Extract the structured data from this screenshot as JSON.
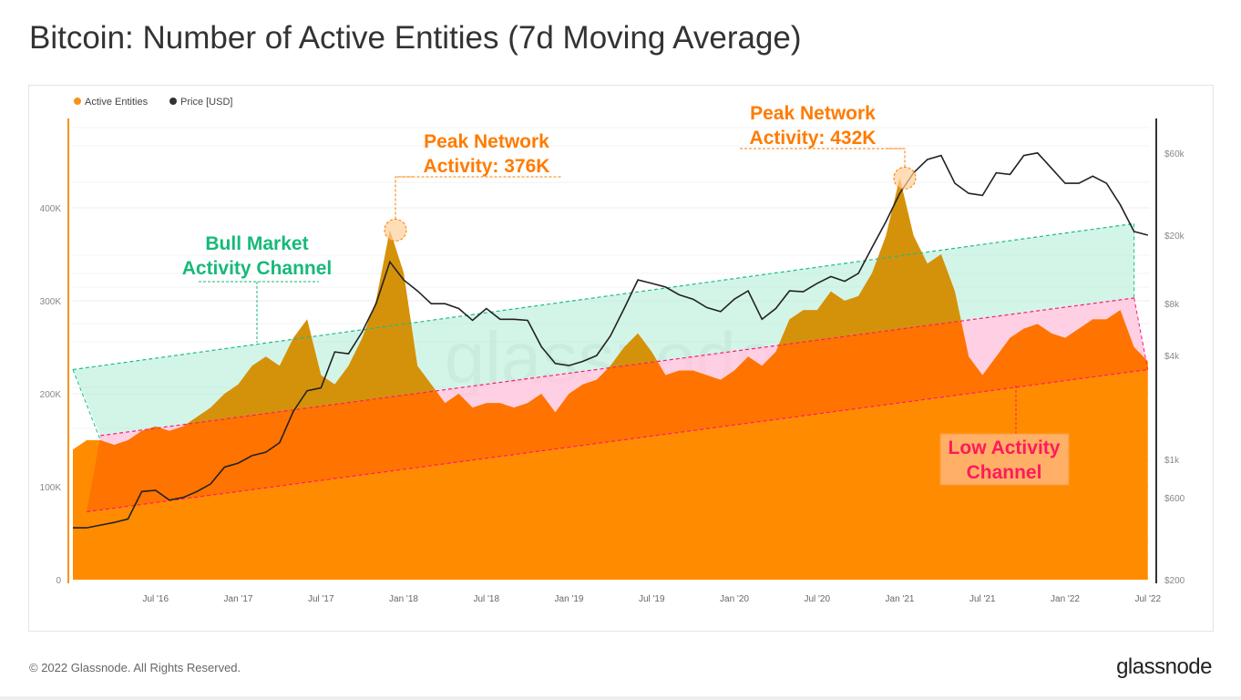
{
  "title": "Bitcoin: Number of Active Entities (7d Moving Average)",
  "footer": "© 2022 Glassnode. All Rights Reserved.",
  "brand": "glassnode",
  "watermark": "glassnode",
  "chart_data": {
    "type": "area",
    "legend": [
      {
        "name": "Active Entities",
        "color": "#f7931a"
      },
      {
        "name": "Price [USD]",
        "color": "#333333"
      }
    ],
    "legend_placement": "top-left",
    "x_ticks": [
      "Jul '16",
      "Jan '17",
      "Jul '17",
      "Jan '18",
      "Jul '18",
      "Jan '19",
      "Jul '19",
      "Jan '20",
      "Jul '20",
      "Jan '21",
      "Jul '21",
      "Jan '22",
      "Jul '22"
    ],
    "y_left": {
      "ticks": [
        0,
        100000,
        200000,
        300000,
        400000
      ],
      "tick_labels": [
        "0",
        "100K",
        "200K",
        "300K",
        "400K"
      ],
      "range": [
        0,
        500000
      ]
    },
    "y_right": {
      "scale": "log",
      "ticks": [
        200,
        600,
        1000,
        4000,
        8000,
        20000,
        60000
      ],
      "tick_labels": [
        "$200",
        "$600",
        "$1k",
        "$4k",
        "$8k",
        "$20k",
        "$60k"
      ]
    },
    "x_start": "2016-01",
    "series": [
      {
        "name": "Active Entities",
        "axis": "left",
        "color": "#f7931a",
        "monthly_values_k": [
          140,
          150,
          150,
          145,
          150,
          160,
          165,
          160,
          165,
          175,
          185,
          200,
          210,
          230,
          240,
          230,
          260,
          280,
          220,
          210,
          230,
          260,
          300,
          376,
          330,
          230,
          210,
          190,
          200,
          185,
          190,
          190,
          185,
          190,
          200,
          180,
          200,
          210,
          215,
          230,
          250,
          265,
          245,
          220,
          225,
          225,
          220,
          215,
          225,
          240,
          230,
          245,
          280,
          290,
          290,
          310,
          300,
          305,
          330,
          370,
          432,
          370,
          340,
          350,
          310,
          240,
          220,
          240,
          260,
          270,
          275,
          265,
          260,
          270,
          280,
          280,
          290,
          250,
          235
        ]
      },
      {
        "name": "Price [USD]",
        "axis": "right",
        "color": "#333333",
        "monthly_values": [
          400,
          400,
          415,
          430,
          450,
          650,
          660,
          580,
          600,
          650,
          720,
          900,
          950,
          1050,
          1100,
          1250,
          1900,
          2500,
          2600,
          4200,
          4100,
          5500,
          8000,
          14000,
          11000,
          9500,
          8000,
          8000,
          7500,
          6400,
          7500,
          6500,
          6500,
          6400,
          4500,
          3600,
          3500,
          3700,
          4000,
          5200,
          7500,
          11000,
          10500,
          10000,
          9000,
          8500,
          7600,
          7200,
          8500,
          9500,
          6500,
          7500,
          9500,
          9400,
          10500,
          11500,
          10800,
          12000,
          17000,
          24000,
          35000,
          46000,
          55000,
          58000,
          40000,
          35000,
          34000,
          46000,
          45000,
          58000,
          60000,
          49000,
          40000,
          40000,
          44000,
          40000,
          30000,
          21000,
          20000
        ]
      }
    ],
    "channels": {
      "bull_top": {
        "start": "2016-01",
        "start_value": 226000,
        "end": "2022-06",
        "end_value": 383000,
        "color": "#1abc8c"
      },
      "mid": {
        "start": "2016-03",
        "start_value": 155000,
        "end": "2022-06",
        "end_value": 303000,
        "color": "#ff1a75"
      },
      "low_bottom": {
        "start": "2016-02",
        "start_value": 73000,
        "end": "2022-07",
        "end_value": 226000,
        "color": "#ff1a75"
      }
    },
    "annotations": [
      {
        "text_lines": [
          "Peak Network",
          "Activity: 376K"
        ],
        "color": "#ff7b00",
        "date": "2017-12",
        "value": 376000
      },
      {
        "text_lines": [
          "Peak Network",
          "Activity: 432K"
        ],
        "color": "#ff7b00",
        "date": "2021-01",
        "value": 432000
      },
      {
        "text_lines": [
          "Bull Market",
          "Activity Channel"
        ],
        "color": "#17b978"
      },
      {
        "text_lines": [
          "Low Activity",
          "Channel"
        ],
        "color": "#ff1a5c",
        "background": "#ffb066"
      }
    ]
  }
}
